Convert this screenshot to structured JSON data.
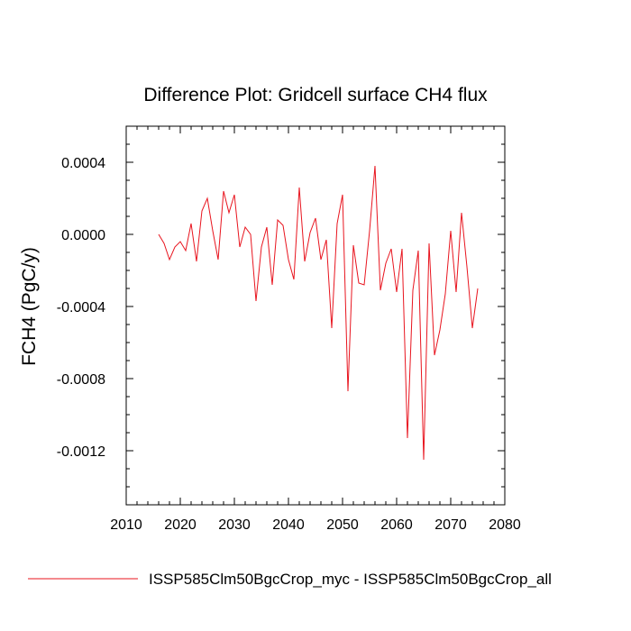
{
  "chart_data": {
    "type": "line",
    "title": "Difference Plot: Gridcell surface CH4 flux",
    "xlabel": "",
    "ylabel": "FCH4  (PgC/y)",
    "xlim": [
      2010,
      2080
    ],
    "ylim": [
      -0.0015,
      0.0006
    ],
    "xticks": [
      2010,
      2020,
      2030,
      2040,
      2050,
      2060,
      2070,
      2080
    ],
    "xtick_labels": [
      "2010",
      "2020",
      "2030",
      "2040",
      "2050",
      "2060",
      "2070",
      "2080"
    ],
    "yticks": [
      0.0004,
      0.0,
      -0.0004,
      -0.0008,
      -0.0012
    ],
    "ytick_labels": [
      "0.0004",
      "0.0000",
      "-0.0004",
      "-0.0008",
      "-0.0012"
    ],
    "grid": false,
    "legend_position": "bottom",
    "series": [
      {
        "name": "ISSP585Clm50BgcCrop_myc - ISSP585Clm50BgcCrop_all",
        "color": "#e8141e",
        "x": [
          2016,
          2017,
          2018,
          2019,
          2020,
          2021,
          2022,
          2023,
          2024,
          2025,
          2026,
          2027,
          2028,
          2029,
          2030,
          2031,
          2032,
          2033,
          2034,
          2035,
          2036,
          2037,
          2038,
          2039,
          2040,
          2041,
          2042,
          2043,
          2044,
          2045,
          2046,
          2047,
          2048,
          2049,
          2050,
          2051,
          2052,
          2053,
          2054,
          2055,
          2056,
          2057,
          2058,
          2059,
          2060,
          2061,
          2062,
          2063,
          2064,
          2065,
          2066,
          2067,
          2068,
          2069,
          2070,
          2071,
          2072,
          2073,
          2074,
          2075
        ],
        "y": [
          0.0,
          -5e-05,
          -0.00014,
          -7e-05,
          -4e-05,
          -9e-05,
          6e-05,
          -0.00015,
          0.00013,
          0.0002,
          2e-05,
          -0.00014,
          0.00024,
          0.00012,
          0.00022,
          -7e-05,
          4e-05,
          0.0,
          -0.00037,
          -7e-05,
          4e-05,
          -0.00028,
          8e-05,
          5e-05,
          -0.00014,
          -0.00025,
          0.00026,
          -0.00015,
          1e-05,
          9e-05,
          -0.00014,
          -3e-05,
          -0.00052,
          6e-05,
          0.00022,
          -0.00087,
          -6e-05,
          -0.00027,
          -0.00028,
          2e-05,
          0.00038,
          -0.00031,
          -0.00016,
          -8e-05,
          -0.00032,
          -8e-05,
          -0.00113,
          -0.00031,
          -9e-05,
          -0.00125,
          -5e-05,
          -0.00067,
          -0.00053,
          -0.00033,
          2e-05,
          -0.00032,
          0.00012,
          -0.00018,
          -0.00052,
          -0.0003
        ]
      }
    ]
  }
}
